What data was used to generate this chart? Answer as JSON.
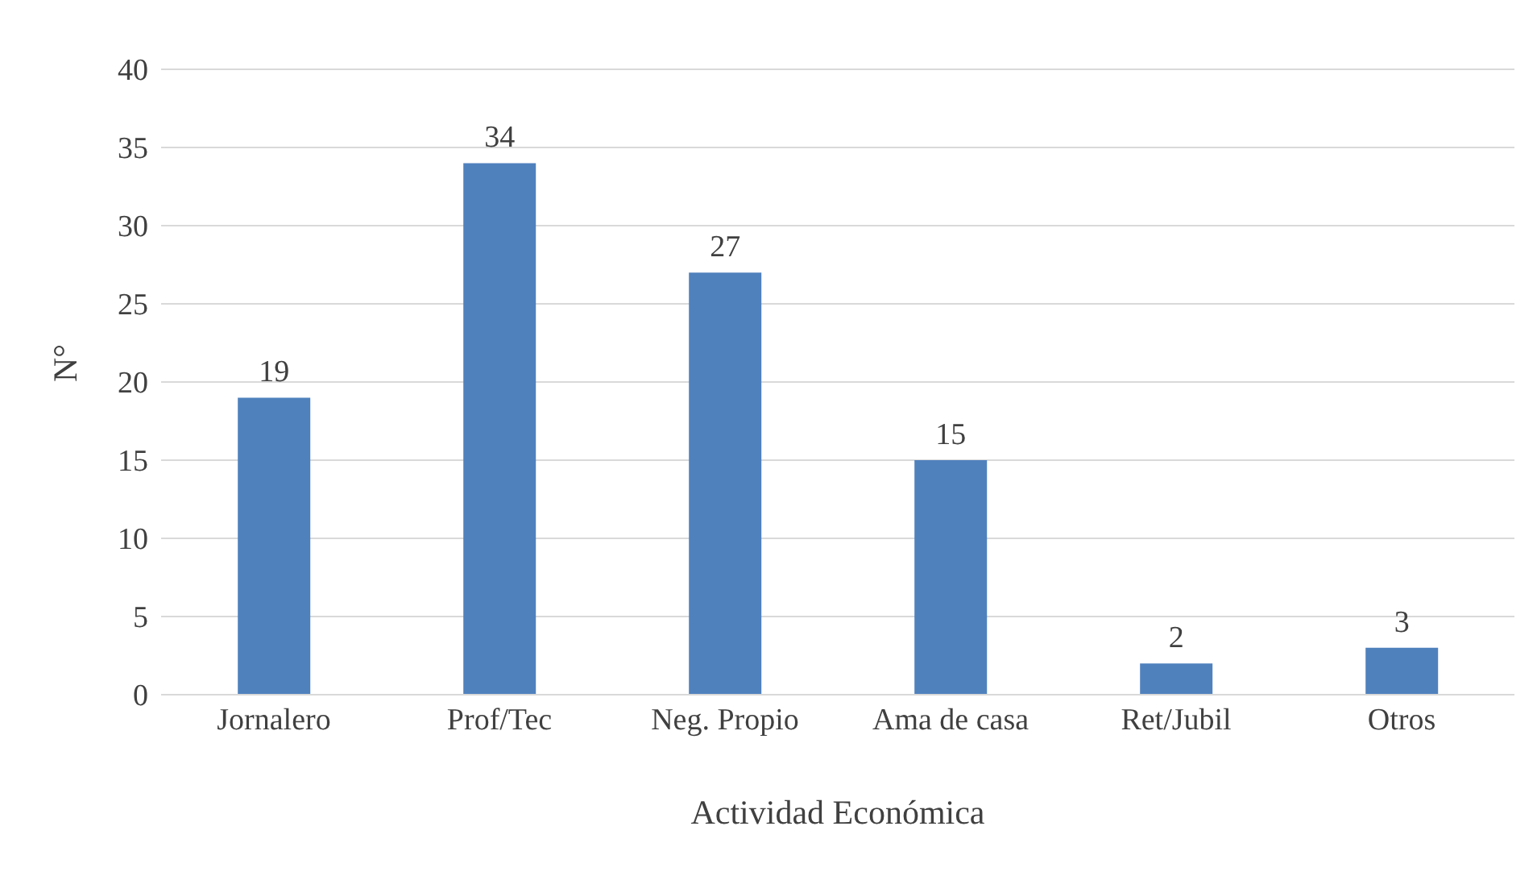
{
  "chart_data": {
    "type": "bar",
    "xlabel": "Actividad Económica",
    "ylabel": "N°",
    "categories": [
      "Jornalero",
      "Prof/Tec",
      "Neg. Propio",
      "Ama de casa",
      "Ret/Jubil",
      "Otros"
    ],
    "values": [
      19,
      34,
      27,
      15,
      2,
      3
    ],
    "color": "#4f81bd",
    "data_labels": true,
    "grid": "y",
    "ylim": [
      0,
      40
    ],
    "yticks": [
      0,
      5,
      10,
      15,
      20,
      25,
      30,
      35,
      40
    ],
    "legend": false
  }
}
